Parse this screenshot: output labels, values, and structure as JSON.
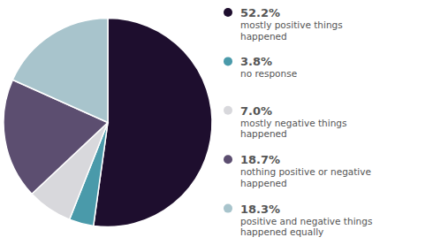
{
  "chart_data": {
    "type": "pie",
    "categories": [
      "mostly positive things\nhappened",
      "no response",
      "mostly negative things\nhappened",
      "nothing positive or negative\nhappened",
      "positive and negative things\nhappened equally"
    ],
    "values": [
      52.2,
      3.8,
      7.0,
      18.7,
      18.3
    ],
    "value_labels": [
      "52.2%",
      "3.8%",
      "7.0%",
      "18.7%",
      "18.3%"
    ],
    "colors": [
      "#1e0e2e",
      "#4a9aaa",
      "#d8d8dc",
      "#5c4e70",
      "#a8c4cc"
    ],
    "legend": "right"
  }
}
